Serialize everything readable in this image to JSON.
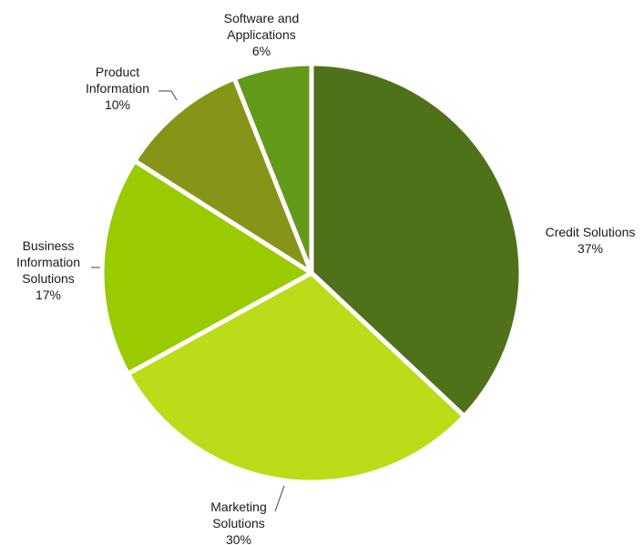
{
  "chart_data": {
    "type": "pie",
    "title": "",
    "slices": [
      {
        "name": "Credit Solutions",
        "label_lines": [
          "Credit Solutions"
        ],
        "value": 37,
        "value_label": "37%",
        "color": "#4f7119"
      },
      {
        "name": "Marketing Solutions",
        "label_lines": [
          "Marketing",
          "Solutions"
        ],
        "value": 30,
        "value_label": "30%",
        "color": "#badc19"
      },
      {
        "name": "Business Information Solutions",
        "label_lines": [
          "Business",
          "Information",
          "Solutions"
        ],
        "value": 17,
        "value_label": "17%",
        "color": "#99cb00"
      },
      {
        "name": "Product Information",
        "label_lines": [
          "Product",
          "Information"
        ],
        "value": 10,
        "value_label": "10%",
        "color": "#869518"
      },
      {
        "name": "Software and Applications",
        "label_lines": [
          "Software and",
          "Applications"
        ],
        "value": 6,
        "value_label": "6%",
        "color": "#649a1a"
      }
    ],
    "start": "12 o'clock",
    "direction": "clockwise",
    "legend": "none",
    "labels": "outside, with category name and percentage"
  }
}
